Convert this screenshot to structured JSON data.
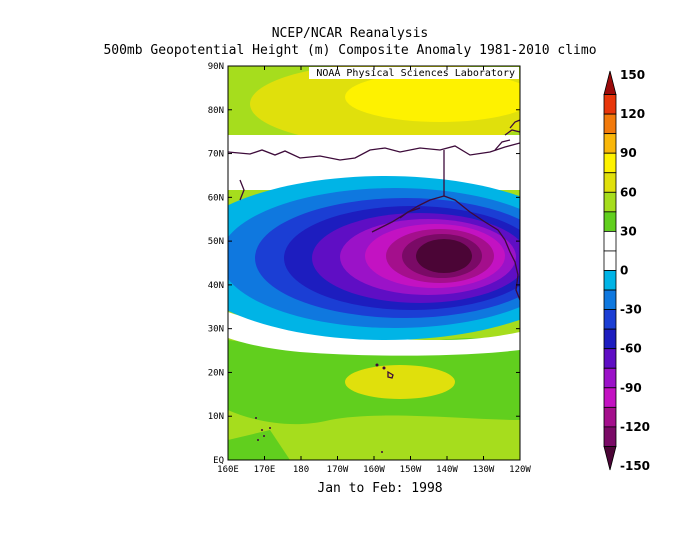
{
  "header": {
    "title": "NCEP/NCAR Reanalysis",
    "subtitle": "500mb Geopotential Height (m) Composite Anomaly 1981-2010 climo"
  },
  "footer": {
    "period": "Jan to Feb: 1998"
  },
  "credit": "NOAA Physical Sciences Laboratory",
  "axes": {
    "x_labels": [
      "160E",
      "170E",
      "180",
      "170W",
      "160W",
      "150W",
      "140W",
      "130W",
      "120W"
    ],
    "y_labels": [
      "EQ",
      "10N",
      "20N",
      "30N",
      "40N",
      "50N",
      "60N",
      "70N",
      "80N",
      "90N"
    ]
  },
  "colorbar": {
    "labels": [
      "150",
      "120",
      "90",
      "60",
      "30",
      "0",
      "-30",
      "-60",
      "-90",
      "-120",
      "-150"
    ],
    "colors": [
      "#9b0a0a",
      "#e8360b",
      "#f27a0c",
      "#f9b70a",
      "#fef200",
      "#e0e00c",
      "#a6dd1d",
      "#61cf1e",
      "#ffffff",
      "#ffffff",
      "#00b4e6",
      "#0f78df",
      "#1b3ed4",
      "#1d1dbf",
      "#5f0ec4",
      "#9b12c8",
      "#c312c2",
      "#a40f8c",
      "#7a0a66",
      "#4b0536"
    ]
  },
  "chart_data": {
    "type": "heatmap",
    "title": "500mb Geopotential Height (m) Composite Anomaly 1981-2010 climo",
    "region": {
      "lon_range": [
        "160E",
        "120W"
      ],
      "lat_range": [
        "EQ",
        "90N"
      ]
    },
    "color_levels": [
      150,
      135,
      120,
      105,
      90,
      75,
      60,
      45,
      30,
      15,
      0,
      -15,
      -30,
      -45,
      -60,
      -75,
      -90,
      -105,
      -120,
      -135,
      -150
    ],
    "features": [
      {
        "pattern": "negative anomaly center",
        "center": [
          "145W",
          "47N"
        ],
        "min_value": -150
      },
      {
        "pattern": "positive anomaly",
        "center": [
          "140W",
          "85N"
        ],
        "max_value": 60
      },
      {
        "pattern": "positive anomaly",
        "center": [
          "155W",
          "20N"
        ],
        "max_value": 45
      }
    ]
  }
}
